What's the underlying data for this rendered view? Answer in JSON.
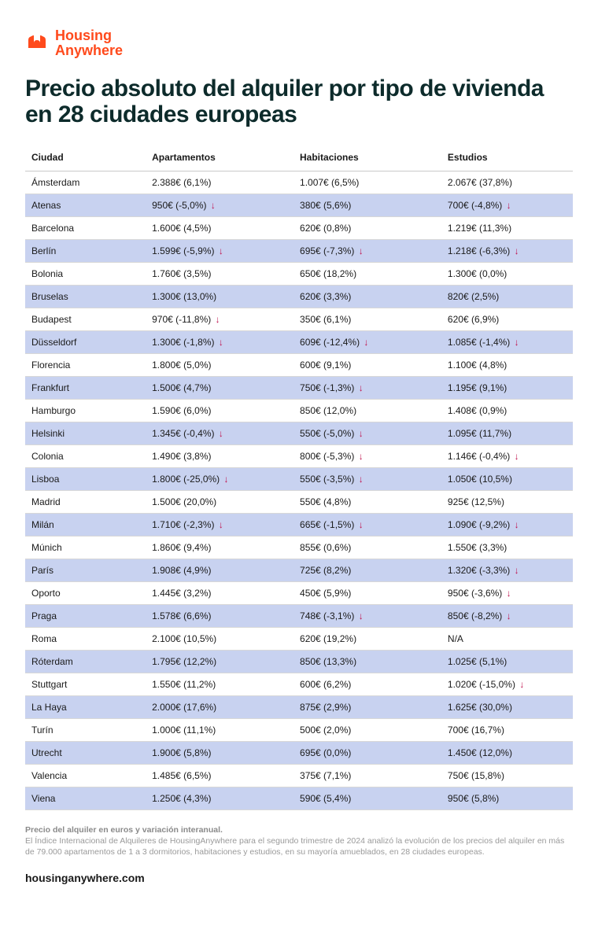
{
  "brand": {
    "line1": "Housing",
    "line2": "Anywhere",
    "color": "#ff4a1c"
  },
  "title": "Precio absoluto del alquiler por tipo de vivienda en 28 ciudades europeas",
  "columns": [
    "Ciudad",
    "Apartamentos",
    "Habitaciones",
    "Estudios"
  ],
  "down_arrow": "↓",
  "rows": [
    {
      "city": "Ámsterdam",
      "apt": {
        "v": "2.388€",
        "p": "(6,1%)",
        "d": false
      },
      "hab": {
        "v": "1.007€",
        "p": "(6,5%)",
        "d": false
      },
      "est": {
        "v": "2.067€",
        "p": "(37,8%)",
        "d": false
      }
    },
    {
      "city": "Atenas",
      "apt": {
        "v": "950€",
        "p": "(-5,0%)",
        "d": true
      },
      "hab": {
        "v": "380€",
        "p": "(5,6%)",
        "d": false
      },
      "est": {
        "v": "700€",
        "p": "(-4,8%)",
        "d": true
      }
    },
    {
      "city": "Barcelona",
      "apt": {
        "v": "1.600€",
        "p": "(4,5%)",
        "d": false
      },
      "hab": {
        "v": "620€",
        "p": "(0,8%)",
        "d": false
      },
      "est": {
        "v": "1.219€",
        "p": "(11,3%)",
        "d": false
      }
    },
    {
      "city": "Berlín",
      "apt": {
        "v": "1.599€",
        "p": "(-5,9%)",
        "d": true
      },
      "hab": {
        "v": "695€",
        "p": "(-7,3%)",
        "d": true
      },
      "est": {
        "v": "1.218€",
        "p": "(-6,3%)",
        "d": true
      }
    },
    {
      "city": "Bolonia",
      "apt": {
        "v": "1.760€",
        "p": "(3,5%)",
        "d": false
      },
      "hab": {
        "v": "650€",
        "p": "(18,2%)",
        "d": false
      },
      "est": {
        "v": "1.300€",
        "p": "(0,0%)",
        "d": false
      }
    },
    {
      "city": "Bruselas",
      "apt": {
        "v": "1.300€",
        "p": "(13,0%)",
        "d": false
      },
      "hab": {
        "v": "620€",
        "p": "(3,3%)",
        "d": false
      },
      "est": {
        "v": "820€",
        "p": "(2,5%)",
        "d": false
      }
    },
    {
      "city": "Budapest",
      "apt": {
        "v": "970€",
        "p": "(-11,8%)",
        "d": true
      },
      "hab": {
        "v": "350€",
        "p": "(6,1%)",
        "d": false
      },
      "est": {
        "v": "620€",
        "p": "(6,9%)",
        "d": false
      }
    },
    {
      "city": "Düsseldorf",
      "apt": {
        "v": "1.300€",
        "p": "(-1,8%)",
        "d": true
      },
      "hab": {
        "v": "609€",
        "p": "(-12,4%)",
        "d": true
      },
      "est": {
        "v": "1.085€",
        "p": "(-1,4%)",
        "d": true
      }
    },
    {
      "city": "Florencia",
      "apt": {
        "v": "1.800€",
        "p": "(5,0%)",
        "d": false
      },
      "hab": {
        "v": "600€",
        "p": "(9,1%)",
        "d": false
      },
      "est": {
        "v": "1.100€",
        "p": "(4,8%)",
        "d": false
      }
    },
    {
      "city": "Frankfurt",
      "apt": {
        "v": "1.500€",
        "p": "(4,7%)",
        "d": false
      },
      "hab": {
        "v": "750€",
        "p": "(-1,3%)",
        "d": true
      },
      "est": {
        "v": "1.195€",
        "p": "(9,1%)",
        "d": false
      }
    },
    {
      "city": "Hamburgo",
      "apt": {
        "v": "1.590€",
        "p": "(6,0%)",
        "d": false
      },
      "hab": {
        "v": "850€",
        "p": "(12,0%)",
        "d": false
      },
      "est": {
        "v": "1.408€",
        "p": "(0,9%)",
        "d": false
      }
    },
    {
      "city": "Helsinki",
      "apt": {
        "v": "1.345€",
        "p": "(-0,4%)",
        "d": true
      },
      "hab": {
        "v": "550€",
        "p": "(-5,0%)",
        "d": true
      },
      "est": {
        "v": "1.095€",
        "p": "(11,7%)",
        "d": false
      }
    },
    {
      "city": "Colonia",
      "apt": {
        "v": "1.490€",
        "p": "(3,8%)",
        "d": false
      },
      "hab": {
        "v": "800€",
        "p": "(-5,3%)",
        "d": true
      },
      "est": {
        "v": "1.146€",
        "p": "(-0,4%)",
        "d": true
      }
    },
    {
      "city": "Lisboa",
      "apt": {
        "v": "1.800€",
        "p": "(-25,0%)",
        "d": true
      },
      "hab": {
        "v": "550€",
        "p": "(-3,5%)",
        "d": true
      },
      "est": {
        "v": "1.050€",
        "p": "(10,5%)",
        "d": false
      }
    },
    {
      "city": "Madrid",
      "apt": {
        "v": "1.500€",
        "p": "(20,0%)",
        "d": false
      },
      "hab": {
        "v": "550€",
        "p": "(4,8%)",
        "d": false
      },
      "est": {
        "v": "925€",
        "p": "(12,5%)",
        "d": false
      }
    },
    {
      "city": "Milán",
      "apt": {
        "v": "1.710€",
        "p": "(-2,3%)",
        "d": true
      },
      "hab": {
        "v": "665€",
        "p": "(-1,5%)",
        "d": true
      },
      "est": {
        "v": "1.090€",
        "p": "(-9,2%)",
        "d": true
      }
    },
    {
      "city": "Múnich",
      "apt": {
        "v": "1.860€",
        "p": "(9,4%)",
        "d": false
      },
      "hab": {
        "v": "855€",
        "p": "(0,6%)",
        "d": false
      },
      "est": {
        "v": "1.550€",
        "p": "(3,3%)",
        "d": false
      }
    },
    {
      "city": "París",
      "apt": {
        "v": "1.908€",
        "p": "(4,9%)",
        "d": false
      },
      "hab": {
        "v": "725€",
        "p": "(8,2%)",
        "d": false
      },
      "est": {
        "v": "1.320€",
        "p": "(-3,3%)",
        "d": true
      }
    },
    {
      "city": "Oporto",
      "apt": {
        "v": "1.445€",
        "p": "(3,2%)",
        "d": false
      },
      "hab": {
        "v": "450€",
        "p": "(5,9%)",
        "d": false
      },
      "est": {
        "v": "950€",
        "p": "(-3,6%)",
        "d": true
      }
    },
    {
      "city": "Praga",
      "apt": {
        "v": "1.578€",
        "p": "(6,6%)",
        "d": false
      },
      "hab": {
        "v": "748€",
        "p": "(-3,1%)",
        "d": true
      },
      "est": {
        "v": "850€",
        "p": "(-8,2%)",
        "d": true
      }
    },
    {
      "city": "Roma",
      "apt": {
        "v": "2.100€",
        "p": "(10,5%)",
        "d": false
      },
      "hab": {
        "v": "620€",
        "p": "(19,2%)",
        "d": false
      },
      "est": {
        "v": "N/A",
        "p": "",
        "d": false
      }
    },
    {
      "city": "Róterdam",
      "apt": {
        "v": "1.795€",
        "p": "(12,2%)",
        "d": false
      },
      "hab": {
        "v": "850€",
        "p": "(13,3%)",
        "d": false
      },
      "est": {
        "v": "1.025€",
        "p": "(5,1%)",
        "d": false
      }
    },
    {
      "city": "Stuttgart",
      "apt": {
        "v": "1.550€",
        "p": "(11,2%)",
        "d": false
      },
      "hab": {
        "v": "600€",
        "p": "(6,2%)",
        "d": false
      },
      "est": {
        "v": "1.020€",
        "p": "(-15,0%)",
        "d": true
      }
    },
    {
      "city": "La Haya",
      "apt": {
        "v": "2.000€",
        "p": "(17,6%)",
        "d": false
      },
      "hab": {
        "v": "875€",
        "p": "(2,9%)",
        "d": false
      },
      "est": {
        "v": "1.625€",
        "p": "(30,0%)",
        "d": false
      }
    },
    {
      "city": "Turín",
      "apt": {
        "v": "1.000€",
        "p": "(11,1%)",
        "d": false
      },
      "hab": {
        "v": "500€",
        "p": "(2,0%)",
        "d": false
      },
      "est": {
        "v": "700€",
        "p": "(16,7%)",
        "d": false
      }
    },
    {
      "city": "Utrecht",
      "apt": {
        "v": "1.900€",
        "p": "(5,8%)",
        "d": false
      },
      "hab": {
        "v": "695€",
        "p": "(0,0%)",
        "d": false
      },
      "est": {
        "v": "1.450€",
        "p": "(12,0%)",
        "d": false
      }
    },
    {
      "city": "Valencia",
      "apt": {
        "v": "1.485€",
        "p": "(6,5%)",
        "d": false
      },
      "hab": {
        "v": "375€",
        "p": "(7,1%)",
        "d": false
      },
      "est": {
        "v": "750€",
        "p": "(15,8%)",
        "d": false
      }
    },
    {
      "city": "Viena",
      "apt": {
        "v": "1.250€",
        "p": "(4,3%)",
        "d": false
      },
      "hab": {
        "v": "590€",
        "p": "(5,4%)",
        "d": false
      },
      "est": {
        "v": "950€",
        "p": "(5,8%)",
        "d": false
      }
    }
  ],
  "footer": {
    "bold": "Precio del alquiler en euros y variación interanual.",
    "text": "El Índice Internacional de Alquileres de HousingAnywhere para el segundo trimestre de 2024 analizó la evolución de los precios del alquiler en más de 79.000 apartamentos de 1 a 3 dormitorios, habitaciones y estudios, en su mayoría amueblados, en 28 ciudades europeas."
  },
  "site": "housinganywhere.com",
  "style": {
    "stripe_color": "#c8d2f0",
    "down_color": "#c0134e",
    "header_color": "#0d2b2b"
  }
}
